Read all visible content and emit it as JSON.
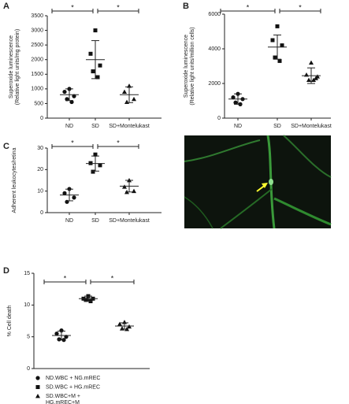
{
  "chart_data": [
    {
      "type": "dotplot",
      "panel": "A",
      "ylabel": [
        "Superoxide luminescence",
        "(Relative light units/mg protein)"
      ],
      "ylim": [
        0,
        3500
      ],
      "yticks": [
        0,
        500,
        1000,
        1500,
        2000,
        2500,
        3000,
        3500
      ],
      "groups": [
        {
          "category": "ND",
          "marker": "circle",
          "values": [
            1000,
            900,
            750,
            650,
            550
          ],
          "mean": 800,
          "sd": 200
        },
        {
          "category": "SD",
          "marker": "square",
          "values": [
            3000,
            2200,
            1800,
            1600,
            1400
          ],
          "mean": 2000,
          "sd": 650
        },
        {
          "category": "SD+Montelukast",
          "marker": "triangle",
          "values": [
            1100,
            900,
            650,
            550
          ],
          "mean": 800,
          "sd": 270
        }
      ],
      "significance": [
        {
          "from": 0,
          "to": 1,
          "label": "*"
        },
        {
          "from": 1,
          "to": 2,
          "label": "*"
        }
      ]
    },
    {
      "type": "dotplot",
      "panel": "B",
      "ylabel": [
        "Superoxide luminescence",
        "(Relative light units/million cells)"
      ],
      "ylim": [
        0,
        6000
      ],
      "yticks": [
        0,
        2000,
        4000,
        6000
      ],
      "groups": [
        {
          "category": "ND",
          "marker": "circle",
          "values": [
            1400,
            1200,
            1100,
            900,
            800
          ],
          "mean": 1100,
          "sd": 300
        },
        {
          "category": "SD",
          "marker": "square",
          "values": [
            5300,
            4500,
            4200,
            3500,
            3300
          ],
          "mean": 4100,
          "sd": 700
        },
        {
          "category": "SD+Montelukast",
          "marker": "triangle",
          "values": [
            3200,
            2500,
            2300,
            2200,
            2200,
            2400
          ],
          "mean": 2450,
          "sd": 450
        }
      ],
      "significance": [
        {
          "from": 0,
          "to": 1,
          "label": "*"
        },
        {
          "from": 1,
          "to": 2,
          "label": "*"
        }
      ]
    },
    {
      "type": "dotplot",
      "panel": "C",
      "ylabel": [
        "Adherent leukocytes/retina"
      ],
      "ylim": [
        0,
        30
      ],
      "yticks": [
        0,
        10,
        20,
        30
      ],
      "groups": [
        {
          "category": "ND",
          "marker": "circle",
          "values": [
            11,
            9,
            7,
            5
          ],
          "mean": 8.2,
          "sd": 2.7
        },
        {
          "category": "SD",
          "marker": "square",
          "values": [
            27,
            23,
            22,
            19
          ],
          "mean": 22.8,
          "sd": 3.5
        },
        {
          "category": "SD+Montelukast",
          "marker": "triangle",
          "values": [
            15,
            12,
            10,
            9.5
          ],
          "mean": 12.3,
          "sd": 2.7
        }
      ],
      "significance": [
        {
          "from": 0,
          "to": 1,
          "label": "*"
        },
        {
          "from": 1,
          "to": 2,
          "label": "*"
        }
      ]
    },
    {
      "type": "dotplot",
      "panel": "D",
      "ylabel": [
        "% Cell death"
      ],
      "ylim": [
        0,
        15
      ],
      "yticks": [
        0,
        5,
        10,
        15
      ],
      "groups": [
        {
          "name": [
            "ND.WBC + NG.mREC"
          ],
          "marker": "circle",
          "values": [
            6,
            5.5,
            5,
            4.6,
            4.5
          ],
          "mean": 5.2,
          "sd": 0.7
        },
        {
          "name": [
            "SD.WBC + HG.mREC"
          ],
          "marker": "square",
          "values": [
            11.4,
            11,
            11,
            10.8,
            10.6
          ],
          "mean": 11,
          "sd": 0.4
        },
        {
          "name": [
            "SD.WBC+M +",
            "HG.mREC+M"
          ],
          "marker": "triangle",
          "values": [
            7.3,
            7,
            6.6,
            6.3,
            6.2
          ],
          "mean": 6.7,
          "sd": 0.5
        }
      ],
      "significance": [
        {
          "from": 0,
          "to": 1,
          "label": "*"
        },
        {
          "from": 1,
          "to": 2,
          "label": "*"
        }
      ]
    }
  ]
}
